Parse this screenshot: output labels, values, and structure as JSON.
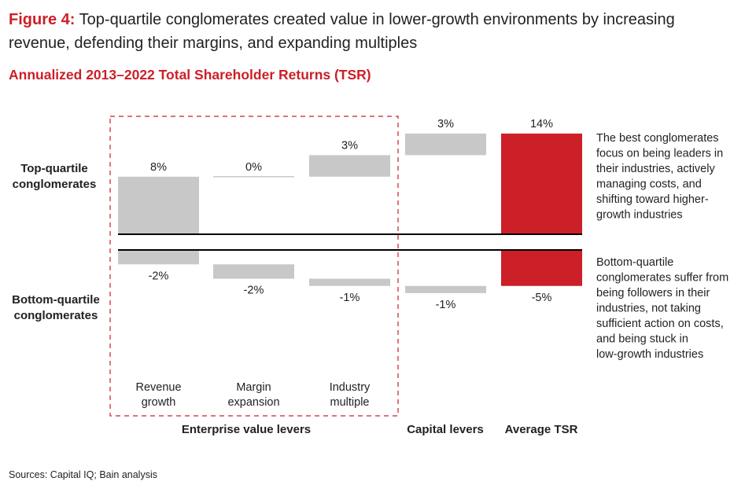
{
  "figure": {
    "label": "Figure 4:",
    "title": "Top-quartile conglomerates created value in lower-growth environments by increasing revenue, defending their margins, and expanding multiples"
  },
  "subtitle": "Annualized 2013–2022 Total Shareholder Returns (TSR)",
  "source": "Sources: Capital IQ; Bain analysis",
  "colors": {
    "accent": "#cc1f27",
    "bar": "#c8c8c8",
    "text": "#222222"
  },
  "chart_data": {
    "type": "bar",
    "categories": [
      [
        "Revenue",
        "growth"
      ],
      [
        "Margin",
        "expansion"
      ],
      [
        "Industry",
        "multiple"
      ],
      [],
      []
    ],
    "group_labels": [
      "Enterprise value levers",
      "Capital levers",
      "Average TSR"
    ],
    "row_labels": {
      "top": [
        "Top-quartile",
        "conglomerates"
      ],
      "bottom": [
        "Bottom-quartile",
        "conglomerates"
      ]
    },
    "series": [
      {
        "name": "Top-quartile conglomerates",
        "values": [
          8,
          0,
          3,
          3,
          14
        ]
      },
      {
        "name": "Bottom-quartile conglomerates",
        "values": [
          -2,
          -2,
          -1,
          -1,
          -5
        ]
      }
    ],
    "value_labels": {
      "top": [
        "8%",
        "0%",
        "3%",
        "3%",
        "14%"
      ],
      "bottom": [
        "-2%",
        "-2%",
        "-1%",
        "-1%",
        "-5%"
      ]
    },
    "total_index": 4,
    "annotations": {
      "top": [
        "The best conglomerates",
        "focus on being leaders in",
        "their industries, actively",
        "managing costs, and",
        "shifting toward higher-",
        "growth industries"
      ],
      "bottom": [
        "Bottom-quartile",
        "conglomerates suffer from",
        "being followers in their",
        "industries, not taking",
        "sufficient action on costs,",
        "and being stuck in",
        "low-growth industries"
      ]
    }
  }
}
